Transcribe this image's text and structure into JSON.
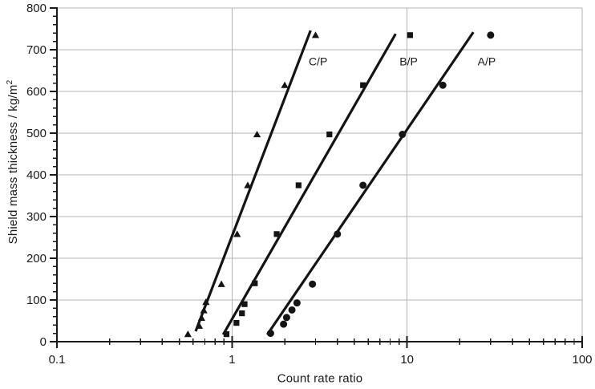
{
  "chart_data": {
    "type": "scatter",
    "title": "",
    "xlabel": "Count rate ratio",
    "ylabel_base": "Shield mass thickness / kg/m",
    "ylabel_superscript": "2",
    "x_scale": "log",
    "y_scale": "linear",
    "xlim": [
      0.1,
      100
    ],
    "ylim": [
      0,
      800
    ],
    "grid_on": true,
    "legend_position": "inline-labels",
    "x_ticks": [
      {
        "value": 0.1,
        "label": "0.1"
      },
      {
        "value": 1,
        "label": "1"
      },
      {
        "value": 10,
        "label": "10"
      },
      {
        "value": 100,
        "label": "100"
      }
    ],
    "y_ticks": [
      {
        "value": 0,
        "label": "0"
      },
      {
        "value": 100,
        "label": "100"
      },
      {
        "value": 200,
        "label": "200"
      },
      {
        "value": 300,
        "label": "300"
      },
      {
        "value": 400,
        "label": "400"
      },
      {
        "value": 500,
        "label": "500"
      },
      {
        "value": 600,
        "label": "600"
      },
      {
        "value": 700,
        "label": "700"
      },
      {
        "value": 800,
        "label": "800"
      }
    ],
    "y_minor_step": 20,
    "x_minor_decades": [
      0.1,
      1,
      10
    ],
    "x_gridlines": [
      1,
      10,
      100
    ],
    "y_gridlines": [
      100,
      200,
      300,
      400,
      500,
      600,
      700,
      800
    ],
    "colors": {
      "marker": "#141414",
      "line": "#141414",
      "grid": "#b3b3b3",
      "axis": "#1a1a1a",
      "text": "#1a1a1a",
      "background": "#ffffff"
    },
    "series": [
      {
        "name": "C/P",
        "marker": "triangle",
        "label_pos": [
          3.1,
          672
        ],
        "trendline": [
          [
            0.62,
            25
          ],
          [
            2.81,
            746
          ]
        ],
        "points": [
          [
            0.56,
            18
          ],
          [
            0.65,
            38
          ],
          [
            0.67,
            57
          ],
          [
            0.69,
            75
          ],
          [
            0.71,
            95
          ],
          [
            0.87,
            138
          ],
          [
            1.07,
            258
          ],
          [
            1.23,
            375
          ],
          [
            1.39,
            497
          ],
          [
            2.0,
            615
          ],
          [
            3.0,
            735
          ]
        ]
      },
      {
        "name": "B/P",
        "marker": "square",
        "label_pos": [
          10.2,
          672
        ],
        "trendline": [
          [
            0.89,
            17
          ],
          [
            8.6,
            738
          ]
        ],
        "points": [
          [
            0.93,
            18
          ],
          [
            1.06,
            45
          ],
          [
            1.14,
            68
          ],
          [
            1.18,
            90
          ],
          [
            1.35,
            140
          ],
          [
            1.8,
            258
          ],
          [
            2.4,
            375
          ],
          [
            3.6,
            497
          ],
          [
            5.6,
            615
          ],
          [
            10.4,
            735
          ]
        ]
      },
      {
        "name": "A/P",
        "marker": "circle",
        "label_pos": [
          28.5,
          672
        ],
        "trendline": [
          [
            1.59,
            17
          ],
          [
            23.9,
            742
          ]
        ],
        "points": [
          [
            1.66,
            20
          ],
          [
            1.97,
            42
          ],
          [
            2.05,
            58
          ],
          [
            2.2,
            76
          ],
          [
            2.35,
            93
          ],
          [
            2.88,
            138
          ],
          [
            4.0,
            258
          ],
          [
            5.6,
            375
          ],
          [
            9.4,
            497
          ],
          [
            16,
            615
          ],
          [
            30,
            735
          ]
        ]
      }
    ]
  }
}
